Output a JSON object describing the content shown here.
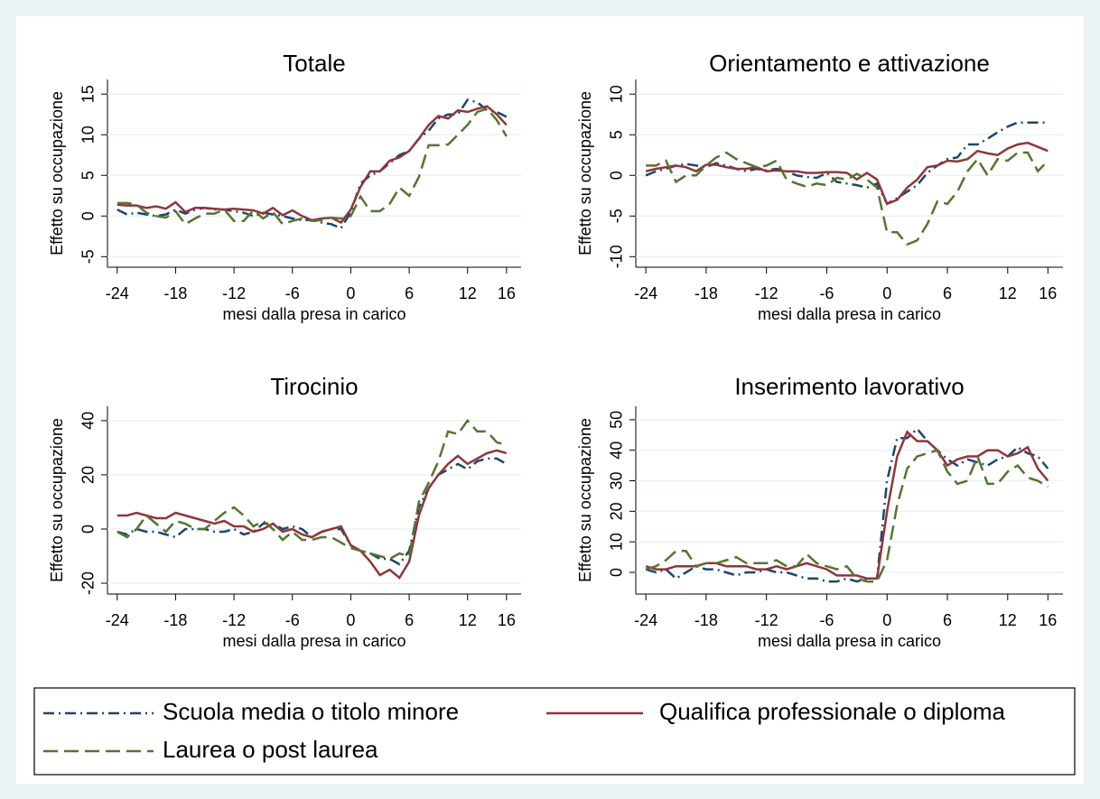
{
  "chart_data": [
    {
      "type": "line",
      "title": "Totale",
      "xlabel": "mesi dalla presa in carico",
      "ylabel": "Effetto su occupazione",
      "x": [
        -24,
        -23,
        -22,
        -21,
        -20,
        -19,
        -18,
        -17,
        -16,
        -15,
        -14,
        -13,
        -12,
        -11,
        -10,
        -9,
        -8,
        -7,
        -6,
        -5,
        -4,
        -3,
        -2,
        -1,
        0,
        1,
        2,
        3,
        4,
        5,
        6,
        7,
        8,
        9,
        10,
        11,
        12,
        13,
        14,
        15,
        16
      ],
      "xlim": [
        -25,
        17.5
      ],
      "xticks": [
        -24,
        -18,
        -12,
        -6,
        0,
        6,
        12,
        16
      ],
      "ylim": [
        -6.3,
        16.8
      ],
      "yticks": [
        -5,
        0,
        5,
        10,
        15
      ],
      "grid": true,
      "series": [
        {
          "name": "Scuola media o titolo minore",
          "color": "#1a476f",
          "line_style": "dashdot",
          "values": [
            0.8,
            0.2,
            0.4,
            0.2,
            0.0,
            0.2,
            0.8,
            0.3,
            0.8,
            1.0,
            0.8,
            0.8,
            0.6,
            0.4,
            0.0,
            0.4,
            0.2,
            0.0,
            -0.3,
            -0.5,
            -0.5,
            -0.8,
            -1.0,
            -1.5,
            0.5,
            4.0,
            5.0,
            5.5,
            6.5,
            7.5,
            8.0,
            9.5,
            10.5,
            12.0,
            12.5,
            12.5,
            14.3,
            14.0,
            13.0,
            12.8,
            12.2
          ]
        },
        {
          "name": "Qualifica professionale o diploma",
          "color": "#90353b",
          "line_style": "solid",
          "values": [
            1.4,
            1.3,
            1.3,
            1.0,
            1.2,
            0.9,
            1.7,
            0.5,
            1.0,
            1.0,
            0.9,
            0.8,
            0.9,
            0.8,
            0.7,
            0.3,
            1.0,
            0.1,
            0.7,
            0.0,
            -0.5,
            -0.3,
            -0.2,
            -0.8,
            0.8,
            3.6,
            5.5,
            5.5,
            6.8,
            7.2,
            8.0,
            9.5,
            11.2,
            12.3,
            12.0,
            13.0,
            12.8,
            13.2,
            13.5,
            12.5,
            11.2
          ]
        },
        {
          "name": "Laurea o post laurea",
          "color": "#55752f",
          "line_style": "dash",
          "values": [
            1.6,
            1.6,
            1.4,
            0.4,
            0.0,
            -0.2,
            0.6,
            -1.0,
            -0.3,
            0.3,
            0.3,
            0.8,
            -0.6,
            -0.6,
            0.7,
            -0.3,
            0.5,
            -1.0,
            -0.6,
            -0.3,
            -0.6,
            -0.5,
            -0.2,
            -0.3,
            0.0,
            2.4,
            0.6,
            0.6,
            1.5,
            3.5,
            2.5,
            4.8,
            8.7,
            8.7,
            8.8,
            10.0,
            11.2,
            12.8,
            13.2,
            11.8,
            9.8
          ]
        }
      ]
    },
    {
      "type": "line",
      "title": "Orientamento e attivazione",
      "xlabel": "mesi dalla presa in carico",
      "ylabel": "Effetto su occupazione",
      "x": [
        -24,
        -23,
        -22,
        -21,
        -20,
        -19,
        -18,
        -17,
        -16,
        -15,
        -14,
        -13,
        -12,
        -11,
        -10,
        -9,
        -8,
        -7,
        -6,
        -5,
        -4,
        -3,
        -2,
        -1,
        0,
        1,
        2,
        3,
        4,
        5,
        6,
        7,
        8,
        9,
        10,
        11,
        12,
        13,
        14,
        15,
        16
      ],
      "xlim": [
        -25,
        17.5
      ],
      "xticks": [
        -24,
        -18,
        -12,
        -6,
        0,
        6,
        12,
        16
      ],
      "ylim": [
        -11.3,
        11.8
      ],
      "yticks": [
        -10,
        -5,
        0,
        5,
        10
      ],
      "grid": true,
      "series": [
        {
          "name": "Scuola media o titolo minore",
          "color": "#1a476f",
          "line_style": "dashdot",
          "values": [
            0.0,
            0.5,
            0.8,
            1.2,
            1.4,
            1.2,
            1.0,
            1.5,
            1.2,
            0.8,
            0.5,
            0.8,
            0.6,
            0.8,
            0.5,
            0.0,
            -0.2,
            -0.3,
            0.3,
            -0.8,
            -1.0,
            -1.2,
            -1.5,
            -1.0,
            -3.5,
            -2.8,
            -2.0,
            -1.2,
            0.3,
            1.2,
            2.0,
            2.2,
            3.8,
            3.8,
            4.5,
            5.3,
            6.0,
            6.5,
            6.5,
            6.5,
            6.5
          ]
        },
        {
          "name": "Qualifica professionale o diploma",
          "color": "#90353b",
          "line_style": "solid",
          "values": [
            0.5,
            0.8,
            1.0,
            1.2,
            1.0,
            0.5,
            1.3,
            1.3,
            1.0,
            0.8,
            0.8,
            1.0,
            0.5,
            0.6,
            0.5,
            0.5,
            0.3,
            0.3,
            0.4,
            0.4,
            0.3,
            -0.5,
            0.3,
            -0.5,
            -3.5,
            -3.0,
            -1.5,
            -0.5,
            1.0,
            1.2,
            1.8,
            1.7,
            2.0,
            3.0,
            2.7,
            2.5,
            3.3,
            3.8,
            4.0,
            3.5,
            3.0
          ]
        },
        {
          "name": "Laurea o post laurea",
          "color": "#55752f",
          "line_style": "dash",
          "values": [
            1.2,
            1.2,
            1.8,
            -0.8,
            0.0,
            0.0,
            1.2,
            2.2,
            2.8,
            2.0,
            1.5,
            1.0,
            1.2,
            1.8,
            -0.5,
            -1.0,
            -1.4,
            -1.0,
            -1.2,
            -0.3,
            -0.5,
            0.2,
            -0.5,
            -1.5,
            -7.0,
            -7.0,
            -8.5,
            -8.0,
            -6.0,
            -3.2,
            -3.5,
            -2.0,
            0.5,
            2.0,
            0.0,
            2.0,
            1.8,
            2.8,
            2.8,
            0.5,
            1.8
          ]
        }
      ]
    },
    {
      "type": "line",
      "title": "Tirocinio",
      "xlabel": "mesi dalla presa in carico",
      "ylabel": "Effetto su occupazione",
      "x": [
        -24,
        -23,
        -22,
        -21,
        -20,
        -19,
        -18,
        -17,
        -16,
        -15,
        -14,
        -13,
        -12,
        -11,
        -10,
        -9,
        -8,
        -7,
        -6,
        -5,
        -4,
        -3,
        -2,
        -1,
        0,
        1,
        2,
        3,
        4,
        5,
        6,
        7,
        8,
        9,
        10,
        11,
        12,
        13,
        14,
        15,
        16
      ],
      "xlim": [
        -25,
        17.5
      ],
      "xticks": [
        -24,
        -18,
        -12,
        -6,
        0,
        6,
        12,
        16
      ],
      "ylim": [
        -24,
        45.3
      ],
      "yticks": [
        -20,
        0,
        20,
        40
      ],
      "grid": true,
      "series": [
        {
          "name": "Scuola media o titolo minore",
          "color": "#1a476f",
          "line_style": "dashdot",
          "values": [
            -1,
            -2,
            0,
            -1,
            -1,
            -2,
            -3,
            0,
            0,
            0,
            -1,
            -1,
            0,
            -2,
            -1,
            2,
            2,
            0,
            1,
            0,
            -3,
            -1,
            0,
            0,
            -6,
            -8,
            -9,
            -11,
            -11,
            -13,
            -8,
            8,
            15,
            20,
            22,
            24,
            22,
            25,
            26,
            26,
            24
          ]
        },
        {
          "name": "Qualifica professionale o diploma",
          "color": "#90353b",
          "line_style": "solid",
          "values": [
            5,
            5,
            6,
            5,
            4,
            4,
            6,
            5,
            4,
            3,
            2,
            3,
            1,
            1,
            -1,
            0,
            2,
            -1,
            0,
            -2,
            -3,
            -1,
            0,
            1,
            -6,
            -8,
            -12,
            -17,
            -15,
            -18,
            -12,
            5,
            15,
            20,
            24,
            27,
            24,
            26,
            28,
            29,
            28
          ]
        },
        {
          "name": "Laurea o post laurea",
          "color": "#55752f",
          "line_style": "dash",
          "values": [
            -1,
            -3,
            0,
            5,
            2,
            -1,
            3,
            2,
            0,
            0,
            3,
            6,
            8,
            5,
            1,
            3,
            0,
            -4,
            -1,
            -4,
            -4,
            -3,
            -3,
            -5,
            -7,
            -8,
            -9,
            -10,
            -11,
            -9,
            -10,
            10,
            17,
            25,
            36,
            35,
            40,
            36,
            36,
            32,
            31
          ]
        }
      ]
    },
    {
      "type": "line",
      "title": "Inserimento lavorativo",
      "xlabel": "mesi dalla presa in carico",
      "ylabel": "Effetto su occupazione",
      "x": [
        -24,
        -23,
        -22,
        -21,
        -20,
        -19,
        -18,
        -17,
        -16,
        -15,
        -14,
        -13,
        -12,
        -11,
        -10,
        -9,
        -8,
        -7,
        -6,
        -5,
        -4,
        -3,
        -2,
        -1,
        0,
        1,
        2,
        3,
        4,
        5,
        6,
        7,
        8,
        9,
        10,
        11,
        12,
        13,
        14,
        15,
        16
      ],
      "xlim": [
        -25,
        17.5
      ],
      "xticks": [
        -24,
        -18,
        -12,
        -6,
        0,
        6,
        12,
        16
      ],
      "ylim": [
        -7.1,
        54.4
      ],
      "yticks": [
        0,
        10,
        20,
        30,
        40,
        50
      ],
      "grid": true,
      "series": [
        {
          "name": "Scuola media o titolo minore",
          "color": "#1a476f",
          "line_style": "dashdot",
          "values": [
            1,
            0,
            1,
            -2,
            0,
            2,
            1,
            1,
            0,
            -1,
            0,
            0,
            1,
            0,
            0,
            -1,
            -2,
            -2,
            -3,
            -3,
            -2,
            -3,
            -2,
            -2,
            30,
            44,
            44,
            47,
            43,
            40,
            37,
            35,
            37,
            36,
            35,
            37,
            38,
            41,
            39,
            38,
            34
          ]
        },
        {
          "name": "Qualifica professionale o diploma",
          "color": "#90353b",
          "line_style": "solid",
          "values": [
            2,
            1,
            1,
            2,
            2,
            2,
            3,
            3,
            2,
            2,
            2,
            1,
            1,
            2,
            1,
            2,
            3,
            2,
            1,
            -1,
            -1,
            -1,
            -2,
            -2,
            20,
            38,
            46,
            43,
            43,
            40,
            35,
            37,
            38,
            38,
            40,
            40,
            38,
            39,
            41,
            34,
            30
          ]
        },
        {
          "name": "Laurea o post laurea",
          "color": "#55752f",
          "line_style": "dash",
          "values": [
            1,
            2,
            4,
            7,
            7,
            2,
            3,
            3,
            4,
            5,
            3,
            3,
            3,
            4,
            2,
            2,
            6,
            3,
            2,
            1,
            2,
            -2,
            -3,
            -3,
            4,
            22,
            34,
            38,
            39,
            40,
            33,
            29,
            30,
            38,
            29,
            29,
            33,
            35,
            31,
            30,
            28
          ]
        }
      ]
    }
  ]
}
